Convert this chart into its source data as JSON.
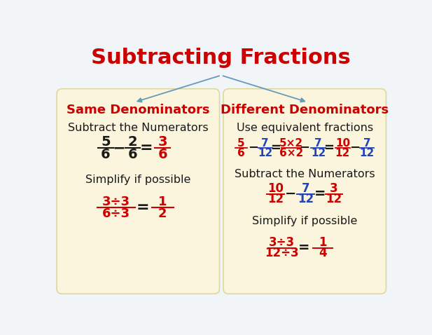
{
  "title": "Subtracting Fractions",
  "title_color": "#cc0000",
  "title_fontsize": 22,
  "bg_color": "#f2f5f8",
  "box_color": "#faf5dc",
  "box_edge_color": "#ddd8a0",
  "arrow_color": "#6699bb",
  "left_header": "Same Denominators",
  "right_header": "Different Denominators",
  "header_color": "#cc0000",
  "black": "#1a1a1a",
  "red": "#cc0000",
  "blue": "#2244bb"
}
